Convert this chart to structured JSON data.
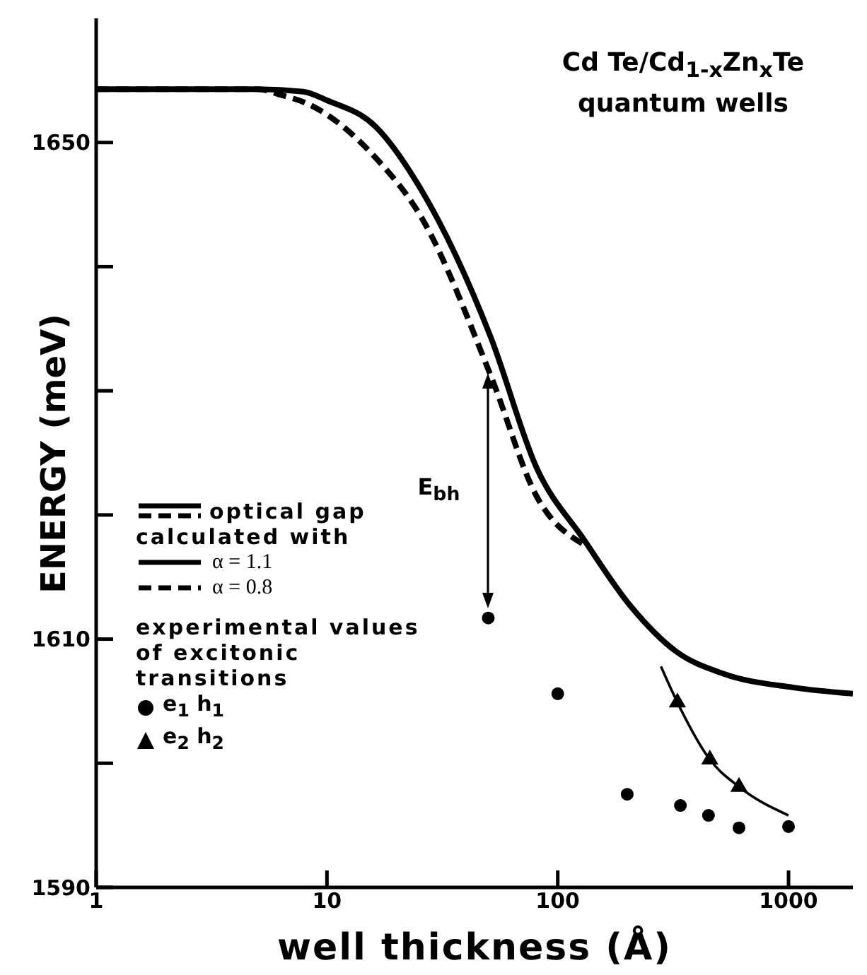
{
  "chart_data": {
    "type": "line",
    "title": "Cd Te/Cd$_{1-x}$Zn$_{x}$Te quantum wells",
    "xlabel": "well thickness (Å)",
    "ylabel": "ENERGY (meV)",
    "log": "x",
    "xlim": [
      1,
      1900
    ],
    "xticks": [
      1,
      10,
      100,
      1000
    ],
    "ylim": [
      1590,
      1660
    ],
    "yticks": [
      1590,
      {
        "value": 1600,
        "label": null
      },
      1610,
      {
        "value": 1620,
        "label": null
      },
      {
        "value": 1630,
        "label": null
      },
      {
        "value": 1640,
        "label": null
      },
      1650
    ],
    "legend": "bottom left",
    "annotations": [
      "optical gap",
      "calculated with",
      "experimental values of excitonic transitions",
      "E$_{bh}$"
    ],
    "series": [
      {
        "name": "α = 1.1",
        "color": "#000000",
        "line_style": "solid",
        "marker": "none",
        "x": [
          1,
          5,
          7.9,
          10,
          16.2,
          25.6,
          51.3,
          81,
          130,
          206,
          326,
          524,
          1050,
          1900
        ],
        "values": [
          1654.3,
          1654.3,
          1654.1,
          1653.4,
          1651.3,
          1646.2,
          1634.3,
          1623.8,
          1618.0,
          1612.7,
          1609.0,
          1607.2,
          1606.1,
          1605.6
        ]
      },
      {
        "name": "α = 0.8",
        "color": "#000000",
        "line_style": "dashed",
        "marker": "none",
        "x": [
          1,
          5,
          6.4,
          8.06,
          16.2,
          25.6,
          51.3,
          81,
          130
        ],
        "values": [
          1654.3,
          1654.3,
          1653.8,
          1653.2,
          1648.8,
          1644.0,
          1631.2,
          1621.5,
          1617.6
        ]
      },
      {
        "name": "e$_{1}$ h$_{1}$",
        "type": "scatter",
        "color": "#000000",
        "marker": "circle",
        "x": [
          50,
          100,
          200,
          340,
          450,
          610,
          1000
        ],
        "values": [
          1611.7,
          1605.6,
          1597.5,
          1596.6,
          1595.8,
          1594.8,
          1594.9
        ]
      },
      {
        "name": "e$_{2}$ h$_{2}$",
        "type": "scatter",
        "color": "#000000",
        "marker": "triangle",
        "x": [
          330,
          456,
          610
        ],
        "values": [
          1604.9,
          1600.3,
          1598.1
        ]
      },
      {
        "color": "#000000",
        "line_style": "solid",
        "marker": "none",
        "x": [
          280,
          330,
          456,
          610,
          1000
        ],
        "values": [
          1607.8,
          1604.9,
          1600.3,
          1598.1,
          1595.8
        ]
      }
    ]
  }
}
